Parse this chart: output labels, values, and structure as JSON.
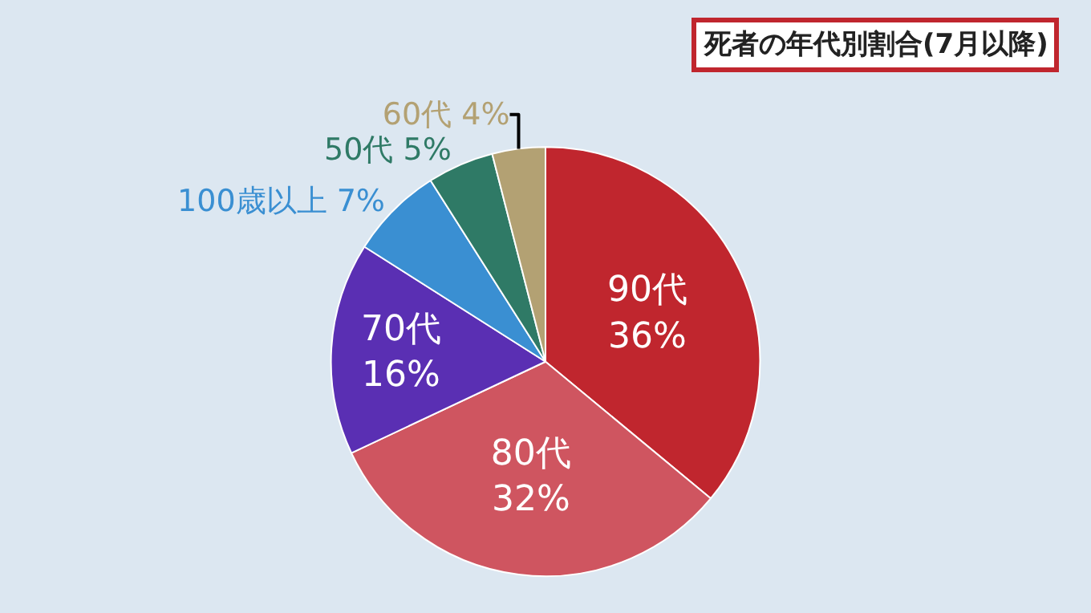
{
  "chart_data": {
    "type": "pie",
    "title": "死者の年代別割合(7月以降)",
    "categories": [
      "90代",
      "80代",
      "70代",
      "100歳以上",
      "50代",
      "60代"
    ],
    "values": [
      36,
      32,
      16,
      7,
      5,
      4
    ],
    "value_labels": [
      "36%",
      "32%",
      "16%",
      "7%",
      "5%",
      "4%"
    ],
    "colors": [
      "#c0262e",
      "#cf5560",
      "#5a2fb3",
      "#3a8fd2",
      "#2f7a66",
      "#b3a173"
    ],
    "legend": false
  }
}
